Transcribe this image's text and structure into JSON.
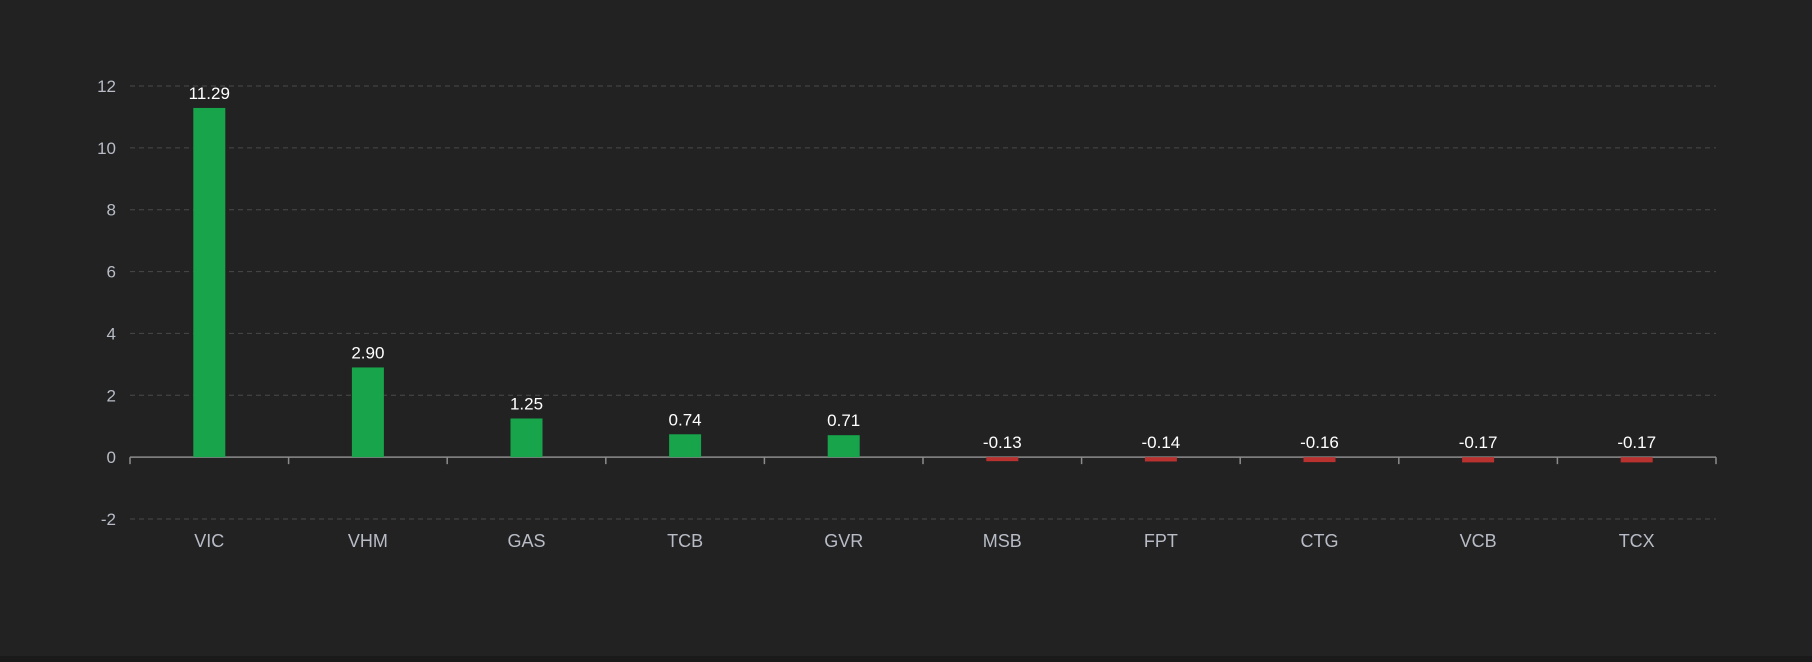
{
  "colors": {
    "background": "#222222",
    "grid": "#4a4a4a",
    "axis": "#8c8c8c",
    "tick_text": "#b8bcc6",
    "label_text": "#ffffff",
    "positive": "#17a44a",
    "negative": "#b9322f"
  },
  "chart_data": {
    "type": "bar",
    "title": "",
    "xlabel": "",
    "ylabel": "",
    "ylim": [
      -2,
      12
    ],
    "yticks": [
      -2,
      0,
      2,
      4,
      6,
      8,
      10,
      12
    ],
    "grid": true,
    "legend": "none",
    "categories": [
      "VIC",
      "VHM",
      "GAS",
      "TCB",
      "GVR",
      "MSB",
      "FPT",
      "CTG",
      "VCB",
      "TCX"
    ],
    "values": [
      11.29,
      2.9,
      1.25,
      0.74,
      0.71,
      -0.13,
      -0.14,
      -0.16,
      -0.17,
      -0.17
    ],
    "value_labels": [
      "11.29",
      "2.90",
      "1.25",
      "0.74",
      "0.71",
      "-0.13",
      "-0.14",
      "-0.16",
      "-0.17",
      "-0.17"
    ]
  }
}
